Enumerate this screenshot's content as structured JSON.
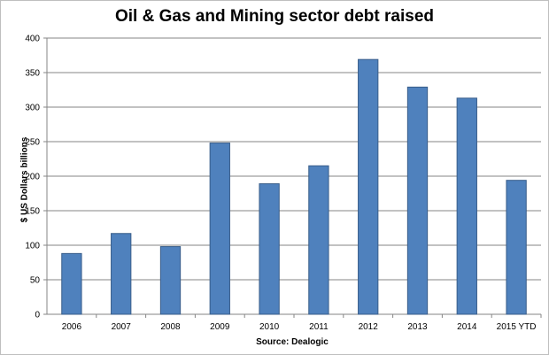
{
  "chart_data": {
    "type": "bar",
    "title": "Oil & Gas and Mining sector debt raised",
    "xlabel": "Source: Dealogic",
    "ylabel": "$ US Dollars billions",
    "categories": [
      "2006",
      "2007",
      "2008",
      "2009",
      "2010",
      "2011",
      "2012",
      "2013",
      "2014",
      "2015 YTD"
    ],
    "values": [
      88,
      117,
      98,
      248,
      189,
      215,
      369,
      329,
      313,
      194
    ],
    "ylim": [
      0,
      400
    ],
    "yticks": [
      0,
      50,
      100,
      150,
      200,
      250,
      300,
      350,
      400
    ],
    "grid": true,
    "legend": "none",
    "colors": {
      "bar_fill": "#4f81bd",
      "bar_stroke": "#385d8a",
      "grid": "#868686",
      "axis": "#868686"
    }
  }
}
